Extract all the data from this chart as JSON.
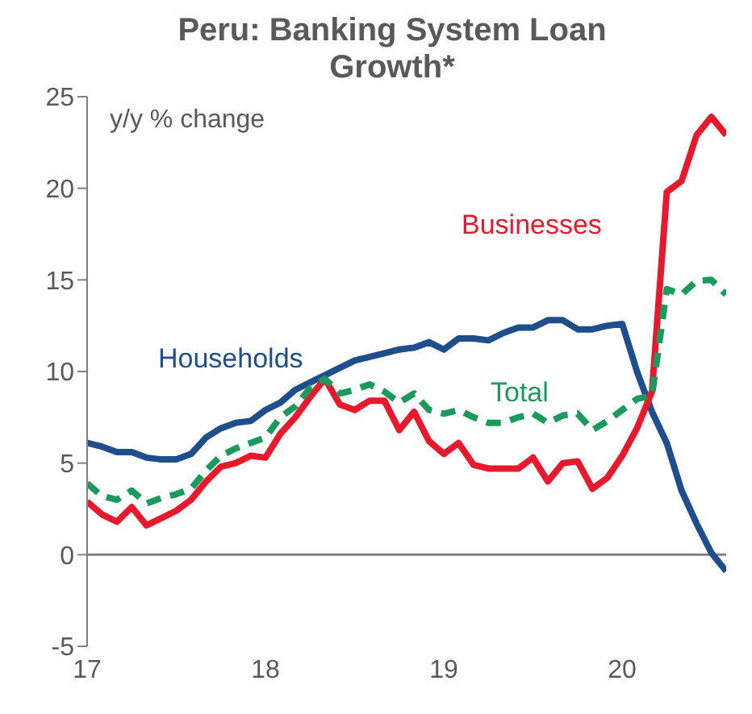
{
  "chart_data": {
    "type": "line",
    "title": "Peru: Banking System Loan Growth*",
    "ylabel": "y/y % change",
    "x": [
      17,
      17.083,
      17.167,
      17.25,
      17.333,
      17.417,
      17.5,
      17.583,
      17.667,
      17.75,
      17.833,
      17.917,
      18,
      18.083,
      18.167,
      18.25,
      18.333,
      18.417,
      18.5,
      18.583,
      18.667,
      18.75,
      18.833,
      18.917,
      19,
      19.083,
      19.167,
      19.25,
      19.333,
      19.417,
      19.5,
      19.583,
      19.667,
      19.75,
      19.833,
      19.917,
      20,
      20.083,
      20.167,
      20.25,
      20.333,
      20.417,
      20.5,
      20.583
    ],
    "series": [
      {
        "name": "Households",
        "color": "#1f4e8c",
        "line_style": "solid",
        "values": [
          6.1,
          5.9,
          5.6,
          5.6,
          5.3,
          5.2,
          5.2,
          5.5,
          6.4,
          6.9,
          7.2,
          7.3,
          7.9,
          8.3,
          9.0,
          9.4,
          9.8,
          10.2,
          10.6,
          10.8,
          11.0,
          11.2,
          11.3,
          11.6,
          11.2,
          11.8,
          11.8,
          11.7,
          12.1,
          12.4,
          12.4,
          12.8,
          12.8,
          12.3,
          12.3,
          12.5,
          12.6,
          10.0,
          7.8,
          6.1,
          3.5,
          1.7,
          0.1,
          -0.9
        ]
      },
      {
        "name": "Businesses",
        "color": "#e8192c",
        "line_style": "solid",
        "values": [
          2.9,
          2.2,
          1.8,
          2.6,
          1.6,
          2.0,
          2.4,
          3.0,
          4.0,
          4.8,
          5.0,
          5.4,
          5.3,
          6.6,
          7.5,
          8.6,
          9.6,
          8.2,
          7.9,
          8.4,
          8.4,
          6.8,
          7.8,
          6.2,
          5.5,
          6.1,
          4.9,
          4.7,
          4.7,
          4.7,
          5.3,
          4.0,
          5.0,
          5.1,
          3.6,
          4.2,
          5.4,
          6.9,
          8.9,
          19.8,
          20.4,
          22.9,
          23.9,
          22.9
        ]
      },
      {
        "name": "Total",
        "color": "#1a9a5c",
        "line_style": "dashed",
        "values": [
          3.9,
          3.2,
          3.0,
          3.5,
          2.8,
          3.1,
          3.3,
          3.6,
          4.6,
          5.4,
          5.8,
          6.1,
          6.4,
          7.5,
          8.1,
          9.1,
          9.6,
          8.8,
          9.0,
          9.3,
          8.9,
          8.3,
          8.8,
          7.9,
          7.7,
          7.9,
          7.5,
          7.2,
          7.2,
          7.5,
          7.7,
          7.2,
          7.6,
          7.7,
          6.8,
          7.3,
          7.9,
          8.5,
          8.7,
          14.5,
          14.2,
          14.95,
          15.0,
          14.2
        ]
      }
    ],
    "xlim": [
      17,
      20.583
    ],
    "xticks": [
      17,
      18,
      19,
      20
    ],
    "ylim": [
      -5,
      25
    ],
    "yticks": [
      -5,
      0,
      5,
      10,
      15,
      20,
      25
    ],
    "ref_lines": [
      {
        "axis": "y",
        "value": 0,
        "color": "#808080"
      }
    ],
    "grid": false,
    "marker": "none"
  }
}
